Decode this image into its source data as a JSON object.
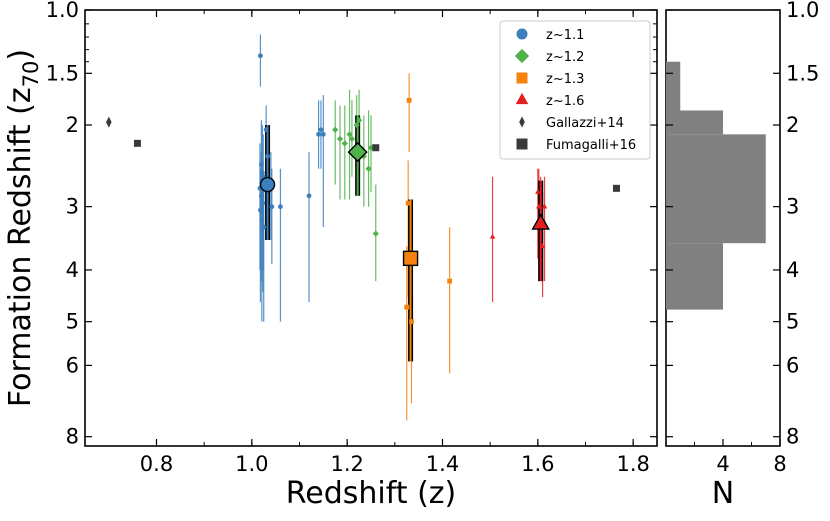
{
  "chart_data": [
    {
      "type": "scatter",
      "panel": "main",
      "xlabel": "Redshift (z)",
      "ylabel": "Formation Redshift (z",
      "ylabel_sub": "70",
      "ylabel_close": ")",
      "xlim": [
        0.65,
        1.85
      ],
      "ylim_top": 1.0,
      "ylim_bottom": 8.3,
      "y_transform": "log(1+z)",
      "x_ticks": [
        0.8,
        1.0,
        1.2,
        1.4,
        1.6,
        1.8
      ],
      "x_tick_labels": [
        "0.8",
        "1.0",
        "1.2",
        "1.4",
        "1.6",
        "1.8"
      ],
      "y_ticks": [
        1.0,
        1.5,
        2,
        3,
        4,
        5,
        6,
        8
      ],
      "y_tick_labels": [
        "1.0",
        "1.5",
        "2",
        "3",
        "4",
        "5",
        "6",
        "8"
      ],
      "legend_position": "upper-right",
      "legend": [
        {
          "label": "z~1.1",
          "marker": "circle",
          "color": "#3c7fbd"
        },
        {
          "label": "z~1.2",
          "marker": "diamond",
          "color": "#4fb24a"
        },
        {
          "label": "z~1.3",
          "marker": "square",
          "color": "#f5820f"
        },
        {
          "label": "z~1.6",
          "marker": "triangle",
          "color": "#e32020"
        },
        {
          "label": "Gallazzi+14",
          "marker": "thin-diamond",
          "color": "#3a3a3a"
        },
        {
          "label": "Fumagalli+16",
          "marker": "square",
          "color": "#3a3a3a"
        }
      ],
      "series": [
        {
          "name": "z~1.1",
          "color": "#3c7fbd",
          "points": [
            {
              "x": 1.018,
              "y": 1.35,
              "ylo": 1.18,
              "yhi": 1.62
            },
            {
              "x": 1.02,
              "y": 2.45,
              "ylo": 1.95,
              "yhi": 3.3
            },
            {
              "x": 1.022,
              "y": 2.55,
              "ylo": 2.0,
              "yhi": 3.5
            },
            {
              "x": 1.024,
              "y": 2.6,
              "ylo": 2.1,
              "yhi": 4.0
            },
            {
              "x": 1.017,
              "y": 2.75,
              "ylo": 2.2,
              "yhi": 4.0
            },
            {
              "x": 1.02,
              "y": 2.85,
              "ylo": 2.3,
              "yhi": 4.2
            },
            {
              "x": 1.023,
              "y": 2.95,
              "ylo": 2.4,
              "yhi": 4.4
            },
            {
              "x": 1.018,
              "y": 3.05,
              "ylo": 2.5,
              "yhi": 4.6
            },
            {
              "x": 1.021,
              "y": 3.2,
              "ylo": 2.6,
              "yhi": 5.0
            },
            {
              "x": 1.025,
              "y": 3.3,
              "ylo": 2.7,
              "yhi": 5.0
            },
            {
              "x": 1.03,
              "y": 2.05,
              "ylo": 1.8,
              "yhi": 2.7
            },
            {
              "x": 1.033,
              "y": 2.35,
              "ylo": 2.0,
              "yhi": 3.0
            },
            {
              "x": 1.04,
              "y": 2.75,
              "ylo": 2.3,
              "yhi": 3.5
            },
            {
              "x": 1.042,
              "y": 3.0,
              "ylo": 2.5,
              "yhi": 3.9
            },
            {
              "x": 1.06,
              "y": 3.0,
              "ylo": 2.5,
              "yhi": 5.0
            },
            {
              "x": 1.12,
              "y": 2.85,
              "ylo": 2.3,
              "yhi": 4.6
            },
            {
              "x": 1.14,
              "y": 2.1,
              "ylo": 1.75,
              "yhi": 2.5
            },
            {
              "x": 1.145,
              "y": 2.05,
              "ylo": 1.75,
              "yhi": 2.5
            },
            {
              "x": 1.15,
              "y": 2.1,
              "ylo": 1.7,
              "yhi": 3.3
            }
          ],
          "summary": {
            "x": 1.033,
            "y": 2.7,
            "ylo": 2.0,
            "yhi": 3.5
          }
        },
        {
          "name": "z~1.2",
          "color": "#4fb24a",
          "points": [
            {
              "x": 1.175,
              "y": 2.05,
              "ylo": 1.75,
              "yhi": 2.7
            },
            {
              "x": 1.185,
              "y": 2.15,
              "ylo": 1.8,
              "yhi": 2.9
            },
            {
              "x": 1.195,
              "y": 2.2,
              "ylo": 1.8,
              "yhi": 2.9
            },
            {
              "x": 1.205,
              "y": 2.1,
              "ylo": 1.65,
              "yhi": 2.9
            },
            {
              "x": 1.21,
              "y": 2.15,
              "ylo": 1.75,
              "yhi": 2.6
            },
            {
              "x": 1.22,
              "y": 2.0,
              "ylo": 1.7,
              "yhi": 2.6
            },
            {
              "x": 1.225,
              "y": 1.95,
              "ylo": 1.65,
              "yhi": 2.7
            },
            {
              "x": 1.235,
              "y": 2.35,
              "ylo": 1.9,
              "yhi": 3.0
            },
            {
              "x": 1.245,
              "y": 2.5,
              "ylo": 1.85,
              "yhi": 3.0
            },
            {
              "x": 1.25,
              "y": 2.25,
              "ylo": 1.9,
              "yhi": 2.8
            },
            {
              "x": 1.26,
              "y": 3.4,
              "ylo": 2.7,
              "yhi": 4.2
            }
          ],
          "summary": {
            "x": 1.222,
            "y": 2.3,
            "ylo": 1.9,
            "yhi": 2.85
          }
        },
        {
          "name": "z~1.3",
          "color": "#f5820f",
          "points": [
            {
              "x": 1.33,
              "y": 1.75,
              "ylo": 1.5,
              "yhi": 2.3
            },
            {
              "x": 1.328,
              "y": 2.95,
              "ylo": 2.4,
              "yhi": 4.5
            },
            {
              "x": 1.325,
              "y": 4.7,
              "ylo": 3.6,
              "yhi": 7.5
            },
            {
              "x": 1.335,
              "y": 5.0,
              "ylo": 3.8,
              "yhi": 7.0
            },
            {
              "x": 1.415,
              "y": 4.2,
              "ylo": 3.3,
              "yhi": 6.2
            }
          ],
          "summary": {
            "x": 1.333,
            "y": 3.8,
            "ylo": 2.9,
            "yhi": 5.9
          }
        },
        {
          "name": "z~1.6",
          "color": "#e32020",
          "points": [
            {
              "x": 1.505,
              "y": 3.45,
              "ylo": 2.6,
              "yhi": 4.6
            },
            {
              "x": 1.6,
              "y": 2.8,
              "ylo": 2.5,
              "yhi": 3.8
            },
            {
              "x": 1.602,
              "y": 3.0,
              "ylo": 2.5,
              "yhi": 4.2
            },
            {
              "x": 1.606,
              "y": 3.2,
              "ylo": 2.6,
              "yhi": 4.0
            },
            {
              "x": 1.61,
              "y": 3.6,
              "ylo": 2.8,
              "yhi": 4.5
            },
            {
              "x": 1.614,
              "y": 3.0,
              "ylo": 2.6,
              "yhi": 4.2
            }
          ],
          "summary": {
            "x": 1.606,
            "y": 3.25,
            "ylo": 2.65,
            "yhi": 4.2
          }
        }
      ],
      "literature": [
        {
          "name": "Gallazzi+14",
          "marker": "thin-diamond",
          "points": [
            {
              "x": 0.7,
              "y": 1.97
            }
          ]
        },
        {
          "name": "Fumagalli+16",
          "marker": "square",
          "points": [
            {
              "x": 0.76,
              "y": 2.2
            },
            {
              "x": 1.26,
              "y": 2.25
            },
            {
              "x": 1.765,
              "y": 2.75
            }
          ]
        }
      ]
    },
    {
      "type": "histogram",
      "panel": "side",
      "orientation": "horizontal",
      "xlabel": "N",
      "xlim": [
        0,
        8
      ],
      "x_ticks": [
        4,
        8
      ],
      "x_tick_labels": [
        "4",
        "8"
      ],
      "color": "#808080",
      "bins": [
        {
          "lo": 1.4,
          "hi": 1.85,
          "count": 1
        },
        {
          "lo": 1.85,
          "hi": 2.1,
          "count": 4
        },
        {
          "lo": 2.1,
          "hi": 3.55,
          "count": 7
        },
        {
          "lo": 3.55,
          "hi": 4.75,
          "count": 4
        }
      ]
    }
  ]
}
